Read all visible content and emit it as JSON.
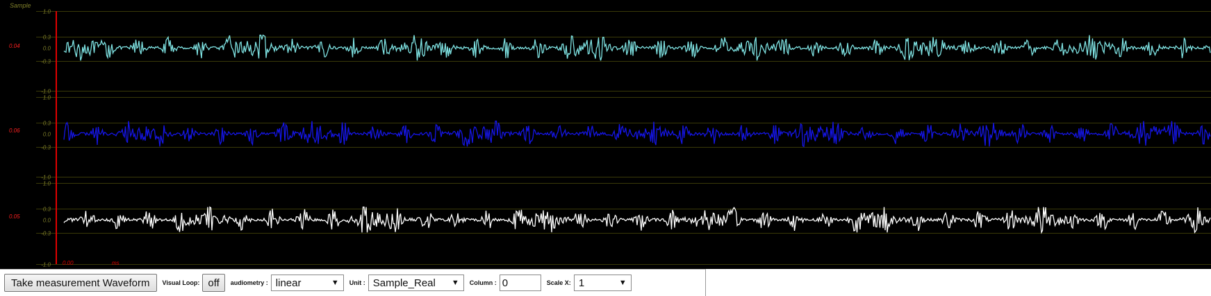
{
  "app": {
    "header_label": "Sample"
  },
  "colors": {
    "background": "#000000",
    "gridline": "#3a3a08",
    "tick_label": "#7f7f2a",
    "cursor": "#e00000",
    "channel_label": "#ff2020"
  },
  "axis": {
    "ticks": [
      "1.0",
      "0.3",
      "0.0",
      "-0.3",
      "-1.0"
    ],
    "ticks_values": [
      1.0,
      0.3,
      0.0,
      -0.3,
      -1.0
    ],
    "time_value": "0.00",
    "time_unit": "ms"
  },
  "channels": [
    {
      "label": "0.04",
      "color": "#7fe3e3"
    },
    {
      "label": "0.06",
      "color": "#1515e6"
    },
    {
      "label": "0.05",
      "color": "#ffffff"
    }
  ],
  "toolbar": {
    "take_measurement_label": "Take measurement Waveform",
    "visual_loop_label": "Visual Loop:",
    "visual_loop_value": "off",
    "audiometry_label": "audiometry :",
    "audiometry_value": "linear",
    "unit_label": "Unit :",
    "unit_value": "Sample_Real",
    "column_label": "Column :",
    "column_value": "0",
    "scale_x_label": "Scale X:",
    "scale_x_value": "1"
  }
}
